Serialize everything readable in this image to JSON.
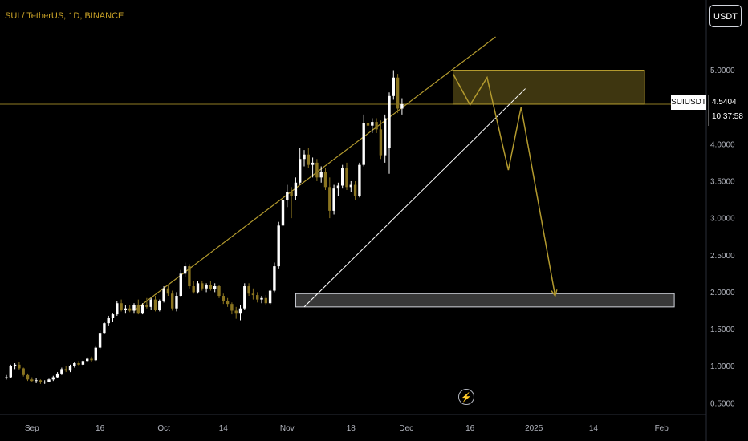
{
  "header": {
    "title": "SUI / TetherUS, 1D, BINANCE",
    "quote_button": "USDT"
  },
  "price_tag": {
    "symbol": "SUIUSDT",
    "price": "4.5404",
    "countdown": "10:37:58"
  },
  "icons": {
    "replay": "lightning-icon"
  },
  "colors": {
    "background": "#000000",
    "bull_candle": "#ffffff",
    "bear_candle": "#8a7420",
    "gold": "#b39a2e",
    "white_line": "#ffffff"
  },
  "chart_data": {
    "type": "candlestick",
    "title": "SUI / TetherUS, 1D, BINANCE",
    "ylim": [
      0.4,
      5.5
    ],
    "y_ticks": [
      "0.5000",
      "1.0000",
      "1.5000",
      "2.0000",
      "2.5000",
      "3.0000",
      "3.5000",
      "4.0000",
      "4.5000",
      "5.0000"
    ],
    "x_ticks": [
      "Sep",
      "16",
      "Oct",
      "14",
      "Nov",
      "18",
      "Dec",
      "16",
      "2025",
      "14",
      "Feb"
    ],
    "candles": [
      {
        "o": 0.85,
        "h": 0.88,
        "l": 0.82,
        "c": 0.85
      },
      {
        "o": 0.85,
        "h": 1.02,
        "l": 0.84,
        "c": 1.0
      },
      {
        "o": 1.0,
        "h": 1.04,
        "l": 0.96,
        "c": 1.02
      },
      {
        "o": 1.02,
        "h": 1.06,
        "l": 0.95,
        "c": 0.97
      },
      {
        "o": 0.97,
        "h": 0.98,
        "l": 0.86,
        "c": 0.88
      },
      {
        "o": 0.88,
        "h": 0.9,
        "l": 0.8,
        "c": 0.82
      },
      {
        "o": 0.82,
        "h": 0.85,
        "l": 0.78,
        "c": 0.8
      },
      {
        "o": 0.8,
        "h": 0.84,
        "l": 0.77,
        "c": 0.81
      },
      {
        "o": 0.81,
        "h": 0.82,
        "l": 0.76,
        "c": 0.78
      },
      {
        "o": 0.78,
        "h": 0.81,
        "l": 0.76,
        "c": 0.79
      },
      {
        "o": 0.79,
        "h": 0.83,
        "l": 0.78,
        "c": 0.82
      },
      {
        "o": 0.82,
        "h": 0.87,
        "l": 0.8,
        "c": 0.85
      },
      {
        "o": 0.85,
        "h": 0.92,
        "l": 0.84,
        "c": 0.9
      },
      {
        "o": 0.9,
        "h": 0.98,
        "l": 0.88,
        "c": 0.96
      },
      {
        "o": 0.96,
        "h": 1.0,
        "l": 0.92,
        "c": 0.94
      },
      {
        "o": 0.94,
        "h": 1.02,
        "l": 0.92,
        "c": 1.0
      },
      {
        "o": 1.0,
        "h": 1.06,
        "l": 0.98,
        "c": 1.04
      },
      {
        "o": 1.04,
        "h": 1.07,
        "l": 1.0,
        "c": 1.02
      },
      {
        "o": 1.02,
        "h": 1.08,
        "l": 1.01,
        "c": 1.07
      },
      {
        "o": 1.07,
        "h": 1.12,
        "l": 1.05,
        "c": 1.1
      },
      {
        "o": 1.1,
        "h": 1.13,
        "l": 1.06,
        "c": 1.08
      },
      {
        "o": 1.08,
        "h": 1.28,
        "l": 1.07,
        "c": 1.25
      },
      {
        "o": 1.25,
        "h": 1.48,
        "l": 1.23,
        "c": 1.45
      },
      {
        "o": 1.45,
        "h": 1.6,
        "l": 1.43,
        "c": 1.58
      },
      {
        "o": 1.58,
        "h": 1.68,
        "l": 1.55,
        "c": 1.65
      },
      {
        "o": 1.65,
        "h": 1.72,
        "l": 1.6,
        "c": 1.7
      },
      {
        "o": 1.7,
        "h": 1.88,
        "l": 1.68,
        "c": 1.85
      },
      {
        "o": 1.85,
        "h": 1.9,
        "l": 1.74,
        "c": 1.76
      },
      {
        "o": 1.76,
        "h": 1.82,
        "l": 1.72,
        "c": 1.78
      },
      {
        "o": 1.78,
        "h": 1.83,
        "l": 1.73,
        "c": 1.75
      },
      {
        "o": 1.75,
        "h": 1.85,
        "l": 1.72,
        "c": 1.83
      },
      {
        "o": 1.83,
        "h": 1.9,
        "l": 1.7,
        "c": 1.72
      },
      {
        "o": 1.72,
        "h": 1.85,
        "l": 1.7,
        "c": 1.83
      },
      {
        "o": 1.83,
        "h": 1.92,
        "l": 1.78,
        "c": 1.8
      },
      {
        "o": 1.8,
        "h": 1.92,
        "l": 1.76,
        "c": 1.9
      },
      {
        "o": 1.9,
        "h": 1.95,
        "l": 1.74,
        "c": 1.76
      },
      {
        "o": 1.76,
        "h": 1.9,
        "l": 1.74,
        "c": 1.88
      },
      {
        "o": 1.88,
        "h": 2.08,
        "l": 1.86,
        "c": 2.05
      },
      {
        "o": 2.05,
        "h": 2.1,
        "l": 1.95,
        "c": 1.98
      },
      {
        "o": 1.98,
        "h": 2.02,
        "l": 1.75,
        "c": 1.78
      },
      {
        "o": 1.78,
        "h": 2.0,
        "l": 1.74,
        "c": 1.95
      },
      {
        "o": 1.95,
        "h": 2.3,
        "l": 1.93,
        "c": 2.25
      },
      {
        "o": 2.25,
        "h": 2.4,
        "l": 2.2,
        "c": 2.35
      },
      {
        "o": 2.35,
        "h": 2.38,
        "l": 2.05,
        "c": 2.08
      },
      {
        "o": 2.08,
        "h": 2.15,
        "l": 1.98,
        "c": 2.0
      },
      {
        "o": 2.0,
        "h": 2.15,
        "l": 1.98,
        "c": 2.12
      },
      {
        "o": 2.12,
        "h": 2.15,
        "l": 2.02,
        "c": 2.05
      },
      {
        "o": 2.05,
        "h": 2.12,
        "l": 2.0,
        "c": 2.1
      },
      {
        "o": 2.1,
        "h": 2.15,
        "l": 2.02,
        "c": 2.04
      },
      {
        "o": 2.04,
        "h": 2.12,
        "l": 2.0,
        "c": 2.08
      },
      {
        "o": 2.08,
        "h": 2.1,
        "l": 1.92,
        "c": 1.95
      },
      {
        "o": 1.95,
        "h": 1.98,
        "l": 1.84,
        "c": 1.88
      },
      {
        "o": 1.88,
        "h": 1.92,
        "l": 1.8,
        "c": 1.84
      },
      {
        "o": 1.84,
        "h": 1.86,
        "l": 1.7,
        "c": 1.75
      },
      {
        "o": 1.75,
        "h": 1.8,
        "l": 1.64,
        "c": 1.72
      },
      {
        "o": 1.72,
        "h": 1.82,
        "l": 1.62,
        "c": 1.78
      },
      {
        "o": 1.78,
        "h": 2.12,
        "l": 1.76,
        "c": 2.08
      },
      {
        "o": 2.08,
        "h": 2.12,
        "l": 1.95,
        "c": 1.98
      },
      {
        "o": 1.98,
        "h": 2.05,
        "l": 1.9,
        "c": 1.96
      },
      {
        "o": 1.96,
        "h": 2.0,
        "l": 1.86,
        "c": 1.9
      },
      {
        "o": 1.9,
        "h": 1.95,
        "l": 1.85,
        "c": 1.92
      },
      {
        "o": 1.92,
        "h": 1.96,
        "l": 1.82,
        "c": 1.85
      },
      {
        "o": 1.85,
        "h": 2.05,
        "l": 1.83,
        "c": 2.02
      },
      {
        "o": 2.02,
        "h": 2.4,
        "l": 2.0,
        "c": 2.35
      },
      {
        "o": 2.35,
        "h": 2.95,
        "l": 2.32,
        "c": 2.9
      },
      {
        "o": 2.9,
        "h": 3.28,
        "l": 2.85,
        "c": 3.25
      },
      {
        "o": 3.25,
        "h": 3.45,
        "l": 3.15,
        "c": 3.35
      },
      {
        "o": 3.35,
        "h": 3.42,
        "l": 3.0,
        "c": 3.3
      },
      {
        "o": 3.3,
        "h": 3.55,
        "l": 3.25,
        "c": 3.48
      },
      {
        "o": 3.48,
        "h": 3.95,
        "l": 3.45,
        "c": 3.8
      },
      {
        "o": 3.8,
        "h": 3.92,
        "l": 3.7,
        "c": 3.86
      },
      {
        "o": 3.86,
        "h": 3.95,
        "l": 3.68,
        "c": 3.72
      },
      {
        "o": 3.72,
        "h": 3.82,
        "l": 3.55,
        "c": 3.75
      },
      {
        "o": 3.75,
        "h": 3.8,
        "l": 3.5,
        "c": 3.55
      },
      {
        "o": 3.55,
        "h": 3.7,
        "l": 3.48,
        "c": 3.62
      },
      {
        "o": 3.62,
        "h": 3.68,
        "l": 3.38,
        "c": 3.42
      },
      {
        "o": 3.42,
        "h": 3.55,
        "l": 3.0,
        "c": 3.1
      },
      {
        "o": 3.1,
        "h": 3.45,
        "l": 3.05,
        "c": 3.4
      },
      {
        "o": 3.4,
        "h": 3.48,
        "l": 3.3,
        "c": 3.44
      },
      {
        "o": 3.44,
        "h": 3.72,
        "l": 3.4,
        "c": 3.68
      },
      {
        "o": 3.68,
        "h": 3.75,
        "l": 3.38,
        "c": 3.42
      },
      {
        "o": 3.42,
        "h": 3.5,
        "l": 3.35,
        "c": 3.45
      },
      {
        "o": 3.45,
        "h": 3.5,
        "l": 3.25,
        "c": 3.3
      },
      {
        "o": 3.3,
        "h": 3.75,
        "l": 3.28,
        "c": 3.72
      },
      {
        "o": 3.72,
        "h": 4.4,
        "l": 3.7,
        "c": 4.28
      },
      {
        "o": 4.28,
        "h": 4.35,
        "l": 4.05,
        "c": 4.25
      },
      {
        "o": 4.25,
        "h": 4.35,
        "l": 4.15,
        "c": 4.3
      },
      {
        "o": 4.3,
        "h": 4.35,
        "l": 4.15,
        "c": 4.2
      },
      {
        "o": 4.2,
        "h": 4.32,
        "l": 3.8,
        "c": 3.85
      },
      {
        "o": 3.85,
        "h": 4.4,
        "l": 3.75,
        "c": 4.35
      },
      {
        "o": 3.95,
        "h": 4.7,
        "l": 3.6,
        "c": 4.65
      },
      {
        "o": 4.65,
        "h": 5.0,
        "l": 4.6,
        "c": 4.9
      },
      {
        "o": 4.9,
        "h": 4.95,
        "l": 4.42,
        "c": 4.48
      },
      {
        "o": 4.48,
        "h": 4.62,
        "l": 4.4,
        "c": 4.54
      }
    ],
    "x_tick_indices": [
      6,
      22,
      37,
      51,
      66,
      81,
      94,
      109,
      124,
      138,
      154
    ],
    "annotations": {
      "top_zone": {
        "y_low": 4.54,
        "y_high": 5.0,
        "i_start": 105,
        "i_end": 150
      },
      "bottom_zone": {
        "y_low": 1.8,
        "y_high": 1.98,
        "i_start": 68,
        "i_end": 157
      },
      "current_price": 4.54,
      "upper_channel": [
        {
          "i": 30,
          "y": 1.75
        },
        {
          "i": 115,
          "y": 5.45
        }
      ],
      "lower_trend": [
        {
          "i": 70,
          "y": 1.8
        },
        {
          "i": 122,
          "y": 4.75
        }
      ],
      "projection": [
        {
          "i": 105,
          "y": 4.95
        },
        {
          "i": 109,
          "y": 4.53
        },
        {
          "i": 113,
          "y": 4.9
        },
        {
          "i": 118,
          "y": 3.65
        },
        {
          "i": 121,
          "y": 4.5
        },
        {
          "i": 129,
          "y": 1.95
        }
      ]
    }
  }
}
